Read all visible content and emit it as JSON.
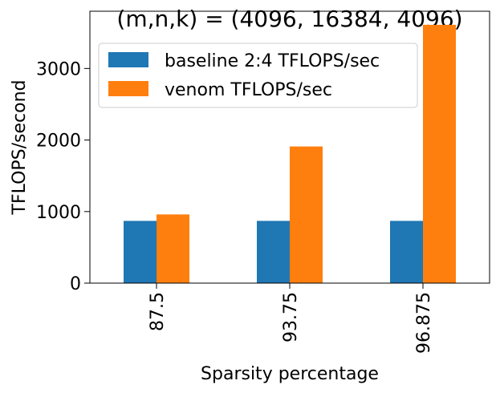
{
  "chart_data": {
    "type": "bar",
    "title": "(m,n,k) = (4096, 16384, 4096)",
    "xlabel": "Sparsity percentage",
    "ylabel": "TFLOPS/second",
    "categories": [
      "87.5",
      "93.75",
      "96.875"
    ],
    "series": [
      {
        "name": "baseline 2:4 TFLOPS/sec",
        "color": "#1f77b4",
        "values": [
          870,
          870,
          870
        ]
      },
      {
        "name": "venom TFLOPS/sec",
        "color": "#ff7f0e",
        "values": [
          960,
          1910,
          3610
        ]
      }
    ],
    "ylim": [
      0,
      3800
    ],
    "yticks": [
      0,
      1000,
      2000,
      3000
    ],
    "xtick_rotation": "vertical",
    "grid": false,
    "legend_position": "top-left"
  }
}
